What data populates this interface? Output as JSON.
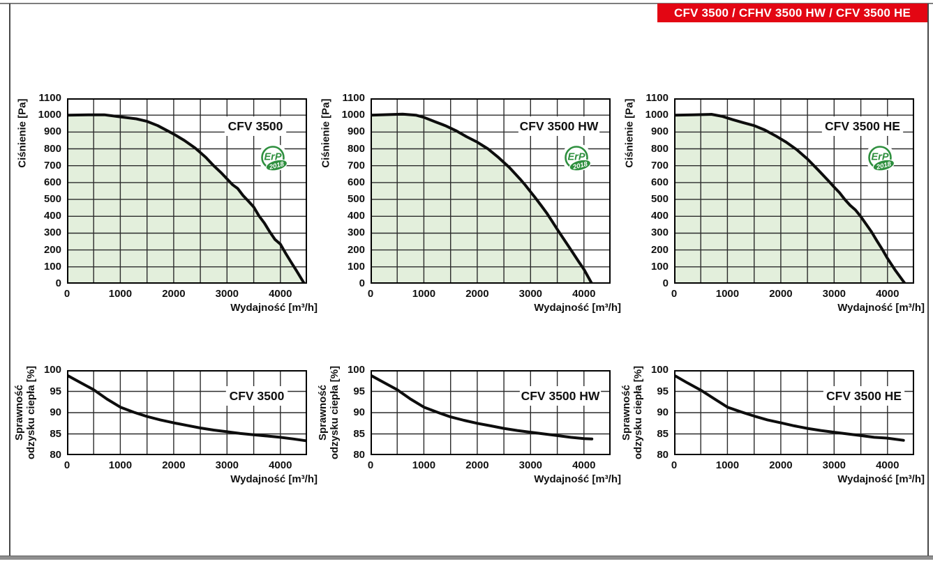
{
  "header": {
    "title": "CFV 3500 / CFHV 3500 HW / CFV 3500 HE",
    "background": "#e30613",
    "text_color": "#ffffff"
  },
  "colors": {
    "area_fill": "#e3efdc",
    "curve": "#0d0d0d",
    "grid": "#2b2b2b",
    "plot_border": "#000000",
    "badge_green": "#2e8f3e"
  },
  "erp_badge": {
    "line1": "ErP",
    "line2": "2018"
  },
  "chart_data": [
    {
      "id": "pressure-cfv-3500",
      "type": "area",
      "row": 0,
      "col": 0,
      "title": "CFV 3500",
      "xlabel": "Wydajność [m³/h]",
      "ylabel_lines": [
        "Ciśnienie [Pa]"
      ],
      "xlim": [
        0,
        4500
      ],
      "ylim": [
        0,
        1100
      ],
      "x_grid_step": 500,
      "y_grid_step": 100,
      "x_ticks": [
        0,
        1000,
        2000,
        3000,
        4000
      ],
      "y_ticks": [
        0,
        100,
        200,
        300,
        400,
        500,
        600,
        700,
        800,
        900,
        1000,
        1100
      ],
      "erp_badge": true,
      "grid": true,
      "legend": "none",
      "points": [
        [
          0,
          1000
        ],
        [
          400,
          1002
        ],
        [
          700,
          1002
        ],
        [
          1000,
          990
        ],
        [
          1300,
          978
        ],
        [
          1500,
          963
        ],
        [
          1700,
          938
        ],
        [
          2000,
          888
        ],
        [
          2200,
          850
        ],
        [
          2400,
          805
        ],
        [
          2600,
          750
        ],
        [
          2750,
          700
        ],
        [
          2900,
          655
        ],
        [
          3000,
          622
        ],
        [
          3100,
          588
        ],
        [
          3200,
          565
        ],
        [
          3300,
          523
        ],
        [
          3400,
          490
        ],
        [
          3500,
          455
        ],
        [
          3600,
          402
        ],
        [
          3700,
          360
        ],
        [
          3800,
          308
        ],
        [
          3900,
          262
        ],
        [
          4000,
          235
        ],
        [
          4100,
          180
        ],
        [
          4200,
          128
        ],
        [
          4300,
          78
        ],
        [
          4450,
          0
        ]
      ]
    },
    {
      "id": "pressure-cfv-3500-hw",
      "type": "area",
      "row": 0,
      "col": 1,
      "title": "CFV 3500 HW",
      "xlabel": "Wydajność [m³/h]",
      "ylabel_lines": [
        "Ciśnienie [Pa]"
      ],
      "xlim": [
        0,
        4500
      ],
      "ylim": [
        0,
        1100
      ],
      "x_grid_step": 500,
      "y_grid_step": 100,
      "x_ticks": [
        0,
        1000,
        2000,
        3000,
        4000
      ],
      "y_ticks": [
        0,
        100,
        200,
        300,
        400,
        500,
        600,
        700,
        800,
        900,
        1000,
        1100
      ],
      "erp_badge": true,
      "grid": true,
      "legend": "none",
      "points": [
        [
          0,
          1000
        ],
        [
          300,
          1003
        ],
        [
          600,
          1006
        ],
        [
          850,
          1000
        ],
        [
          1000,
          987
        ],
        [
          1200,
          962
        ],
        [
          1400,
          938
        ],
        [
          1600,
          908
        ],
        [
          1800,
          872
        ],
        [
          2000,
          840
        ],
        [
          2200,
          800
        ],
        [
          2400,
          748
        ],
        [
          2600,
          690
        ],
        [
          2800,
          622
        ],
        [
          2900,
          585
        ],
        [
          3000,
          545
        ],
        [
          3100,
          505
        ],
        [
          3200,
          463
        ],
        [
          3300,
          420
        ],
        [
          3400,
          372
        ],
        [
          3500,
          322
        ],
        [
          3600,
          275
        ],
        [
          3700,
          228
        ],
        [
          3800,
          180
        ],
        [
          3900,
          132
        ],
        [
          4000,
          85
        ],
        [
          4150,
          0
        ]
      ]
    },
    {
      "id": "pressure-cfv-3500-he",
      "type": "area",
      "row": 0,
      "col": 2,
      "title": "CFV 3500 HE",
      "xlabel": "Wydajność [m³/h]",
      "ylabel_lines": [
        "Ciśnienie [Pa]"
      ],
      "xlim": [
        0,
        4500
      ],
      "ylim": [
        0,
        1100
      ],
      "x_grid_step": 500,
      "y_grid_step": 100,
      "x_ticks": [
        0,
        1000,
        2000,
        3000,
        4000
      ],
      "y_ticks": [
        0,
        100,
        200,
        300,
        400,
        500,
        600,
        700,
        800,
        900,
        1000,
        1100
      ],
      "erp_badge": true,
      "grid": true,
      "legend": "none",
      "points": [
        [
          0,
          1000
        ],
        [
          350,
          1002
        ],
        [
          700,
          1005
        ],
        [
          900,
          993
        ],
        [
          1100,
          973
        ],
        [
          1300,
          955
        ],
        [
          1500,
          938
        ],
        [
          1700,
          912
        ],
        [
          1900,
          878
        ],
        [
          2100,
          840
        ],
        [
          2300,
          795
        ],
        [
          2500,
          740
        ],
        [
          2700,
          675
        ],
        [
          2900,
          608
        ],
        [
          3000,
          573
        ],
        [
          3100,
          540
        ],
        [
          3200,
          500
        ],
        [
          3300,
          465
        ],
        [
          3400,
          437
        ],
        [
          3500,
          398
        ],
        [
          3600,
          353
        ],
        [
          3700,
          308
        ],
        [
          3800,
          255
        ],
        [
          3900,
          205
        ],
        [
          4000,
          150
        ],
        [
          4150,
          78
        ],
        [
          4330,
          0
        ]
      ]
    },
    {
      "id": "efficiency-cfv-3500",
      "type": "line",
      "row": 1,
      "col": 0,
      "title": "CFV 3500",
      "xlabel": "Wydajność [m³/h]",
      "ylabel_lines": [
        "Sprawność",
        "odzysku ciepła [%]"
      ],
      "xlim": [
        0,
        4500
      ],
      "ylim": [
        80,
        100
      ],
      "x_grid_step": 500,
      "y_grid_step": 5,
      "x_ticks": [
        0,
        1000,
        2000,
        3000,
        4000
      ],
      "y_ticks": [
        80,
        85,
        90,
        95,
        100
      ],
      "erp_badge": false,
      "grid": true,
      "legend": "none",
      "points": [
        [
          0,
          98.8
        ],
        [
          250,
          97.1
        ],
        [
          500,
          95.4
        ],
        [
          750,
          93.2
        ],
        [
          1000,
          91.3
        ],
        [
          1250,
          90.1
        ],
        [
          1500,
          89.1
        ],
        [
          1750,
          88.3
        ],
        [
          2000,
          87.6
        ],
        [
          2250,
          87.0
        ],
        [
          2500,
          86.4
        ],
        [
          2750,
          85.9
        ],
        [
          3000,
          85.5
        ],
        [
          3250,
          85.1
        ],
        [
          3500,
          84.8
        ],
        [
          3750,
          84.5
        ],
        [
          4000,
          84.2
        ],
        [
          4250,
          83.8
        ],
        [
          4480,
          83.4
        ]
      ]
    },
    {
      "id": "efficiency-cfv-3500-hw",
      "type": "line",
      "row": 1,
      "col": 1,
      "title": "CFV 3500 HW",
      "xlabel": "Wydajność [m³/h]",
      "ylabel_lines": [
        "Sprawność",
        "odzysku ciepła [%]"
      ],
      "xlim": [
        0,
        4500
      ],
      "ylim": [
        80,
        100
      ],
      "x_grid_step": 500,
      "y_grid_step": 5,
      "x_ticks": [
        0,
        1000,
        2000,
        3000,
        4000
      ],
      "y_ticks": [
        80,
        85,
        90,
        95,
        100
      ],
      "erp_badge": false,
      "grid": true,
      "legend": "none",
      "points": [
        [
          0,
          98.8
        ],
        [
          250,
          97.1
        ],
        [
          500,
          95.4
        ],
        [
          750,
          93.2
        ],
        [
          1000,
          91.3
        ],
        [
          1250,
          90.1
        ],
        [
          1500,
          89.0
        ],
        [
          1750,
          88.2
        ],
        [
          2000,
          87.5
        ],
        [
          2250,
          86.9
        ],
        [
          2500,
          86.3
        ],
        [
          2750,
          85.8
        ],
        [
          3000,
          85.4
        ],
        [
          3250,
          85.0
        ],
        [
          3500,
          84.6
        ],
        [
          3750,
          84.2
        ],
        [
          4000,
          83.9
        ],
        [
          4150,
          83.8
        ]
      ]
    },
    {
      "id": "efficiency-cfv-3500-he",
      "type": "line",
      "row": 1,
      "col": 2,
      "title": "CFV 3500 HE",
      "xlabel": "Wydajność [m³/h]",
      "ylabel_lines": [
        "Sprawność",
        "odzysku ciepła [%]"
      ],
      "xlim": [
        0,
        4500
      ],
      "ylim": [
        80,
        100
      ],
      "x_grid_step": 500,
      "y_grid_step": 5,
      "x_ticks": [
        0,
        1000,
        2000,
        3000,
        4000
      ],
      "y_ticks": [
        80,
        85,
        90,
        95,
        100
      ],
      "erp_badge": false,
      "grid": true,
      "legend": "none",
      "points": [
        [
          0,
          98.8
        ],
        [
          250,
          97.0
        ],
        [
          500,
          95.3
        ],
        [
          750,
          93.3
        ],
        [
          1000,
          91.3
        ],
        [
          1250,
          90.2
        ],
        [
          1500,
          89.2
        ],
        [
          1750,
          88.3
        ],
        [
          2000,
          87.6
        ],
        [
          2250,
          86.9
        ],
        [
          2500,
          86.3
        ],
        [
          2750,
          85.8
        ],
        [
          3000,
          85.4
        ],
        [
          3250,
          85.0
        ],
        [
          3500,
          84.6
        ],
        [
          3750,
          84.2
        ],
        [
          4000,
          84.0
        ],
        [
          4300,
          83.5
        ]
      ]
    }
  ]
}
